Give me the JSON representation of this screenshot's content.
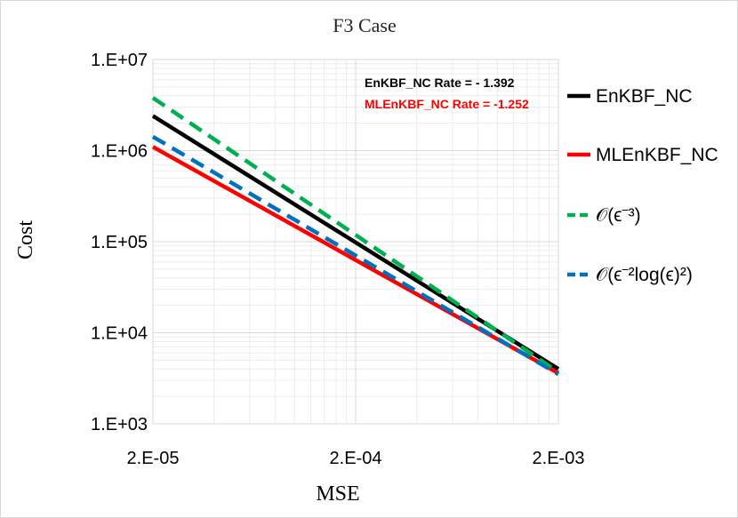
{
  "chart_data": {
    "type": "line",
    "title": "F3 Case",
    "xlabel": "MSE",
    "ylabel": "Cost",
    "xscale": "log",
    "yscale": "log",
    "xlim": [
      2e-05,
      0.002
    ],
    "ylim": [
      1000,
      10000000
    ],
    "x_ticks": [
      {
        "value": 2e-05,
        "label": "2.E-05"
      },
      {
        "value": 0.0002,
        "label": "2.E-04"
      },
      {
        "value": 0.002,
        "label": "2.E-03"
      }
    ],
    "y_ticks": [
      {
        "value": 1000,
        "label": "1.E+03"
      },
      {
        "value": 10000,
        "label": "1.E+04"
      },
      {
        "value": 100000,
        "label": "1.E+05"
      },
      {
        "value": 1000000,
        "label": "1.E+06"
      },
      {
        "value": 10000000,
        "label": "1.E+07"
      }
    ],
    "grid": true,
    "series": [
      {
        "name": "EnKBF_NC",
        "color": "#000000",
        "dash": "solid",
        "x": [
          2e-05,
          0.002
        ],
        "y": [
          2400000,
          4000
        ]
      },
      {
        "name": "MLEnKBF_NC",
        "color": "#ff0000",
        "dash": "solid",
        "x": [
          2e-05,
          0.002
        ],
        "y": [
          1100000,
          3600
        ]
      },
      {
        "name": "𝒪(ϵ⁻³)",
        "color": "#00b050",
        "dash": "dashed",
        "x": [
          2e-05,
          0.002
        ],
        "y": [
          3800000,
          3700
        ]
      },
      {
        "name": "𝒪(ϵ⁻²log(ϵ)²)",
        "color": "#0070c0",
        "dash": "dashed",
        "x": [
          2e-05,
          0.002
        ],
        "y": [
          1420000,
          3500
        ]
      }
    ],
    "legend_position": "right",
    "annotations": [
      {
        "text": "EnKBF_NC Rate = - 1.392",
        "color": "#000000"
      },
      {
        "text": "MLEnKBF_NC Rate = -1.252",
        "color": "#ff0000"
      }
    ]
  }
}
